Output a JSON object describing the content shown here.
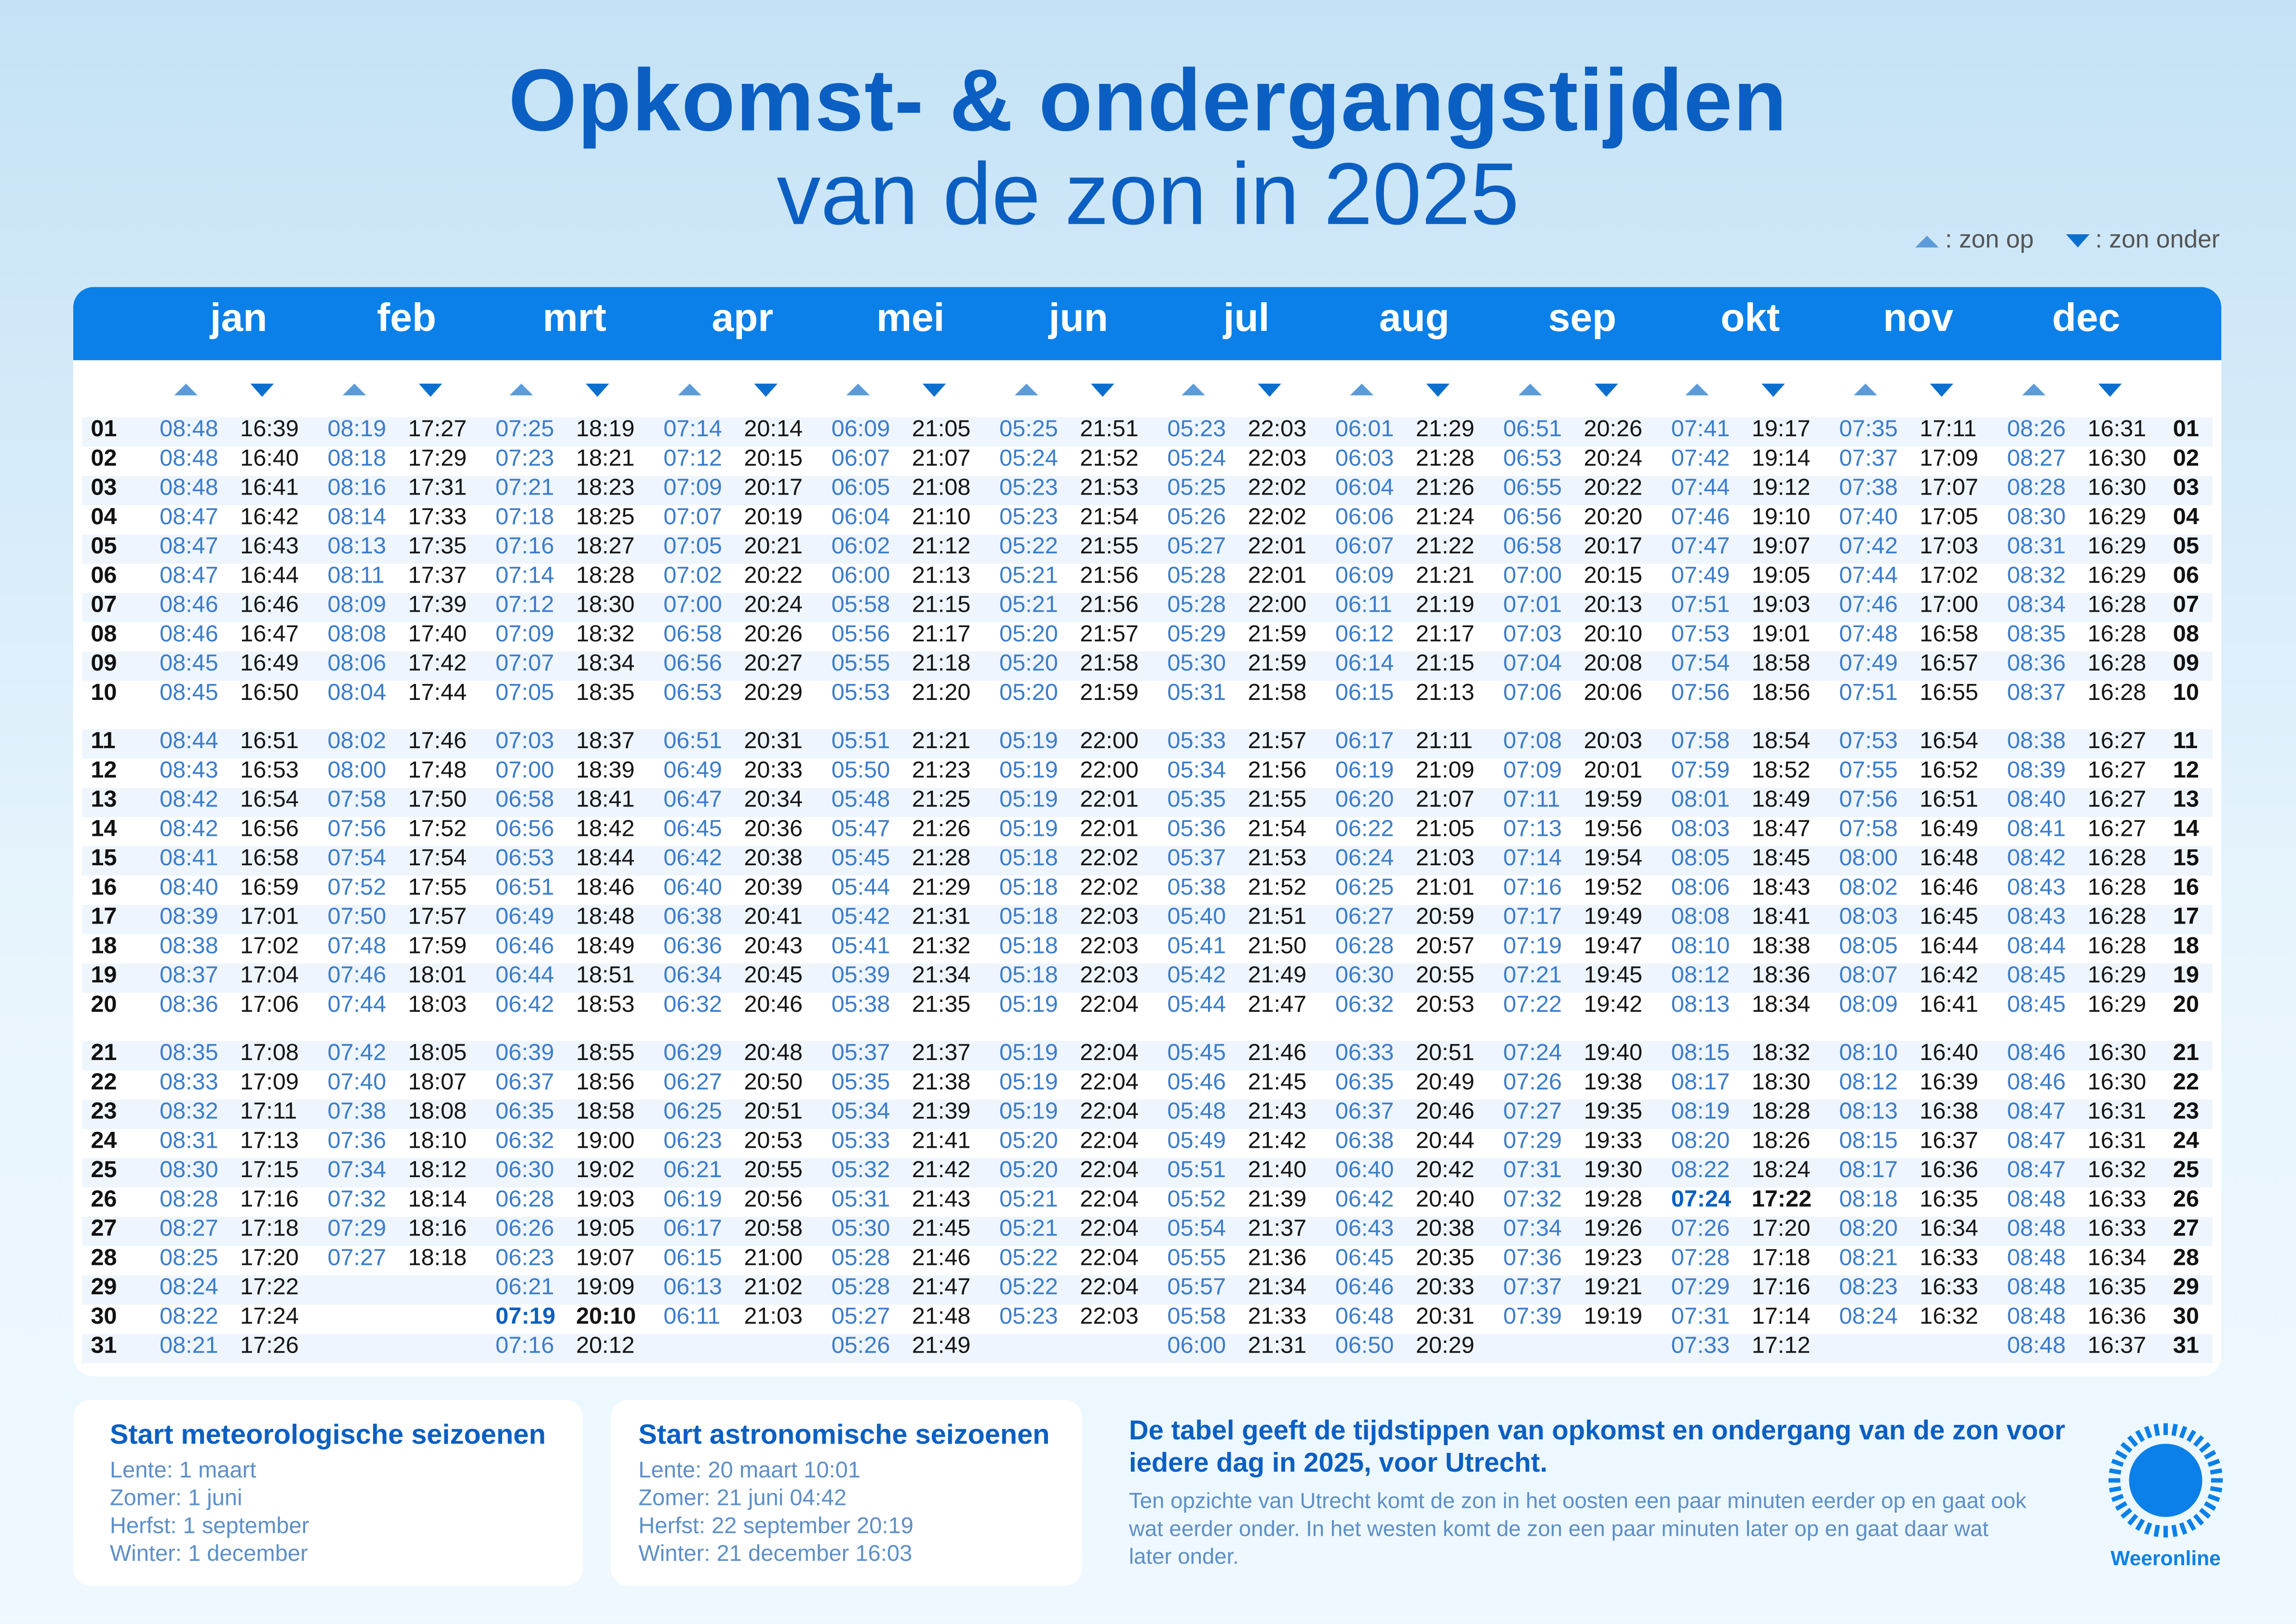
{
  "header": {
    "title": "Opkomst- & ondergangstijden",
    "subtitle": "van de zon in 2025"
  },
  "legend": {
    "rise_label": ": zon op",
    "set_label": ": zon onder"
  },
  "colors": {
    "brand": "#0a80e8",
    "title": "#0b5fc2",
    "rise": "#3a7dcc",
    "set": "#151515"
  },
  "days": [
    "01",
    "02",
    "03",
    "04",
    "05",
    "06",
    "07",
    "08",
    "09",
    "10",
    "11",
    "12",
    "13",
    "14",
    "15",
    "16",
    "17",
    "18",
    "19",
    "20",
    "21",
    "22",
    "23",
    "24",
    "25",
    "26",
    "27",
    "28",
    "29",
    "30",
    "31"
  ],
  "months": [
    {
      "name": "jan",
      "highlight": [],
      "rise": [
        "08:48",
        "08:48",
        "08:48",
        "08:47",
        "08:47",
        "08:47",
        "08:46",
        "08:46",
        "08:45",
        "08:45",
        "08:44",
        "08:43",
        "08:42",
        "08:42",
        "08:41",
        "08:40",
        "08:39",
        "08:38",
        "08:37",
        "08:36",
        "08:35",
        "08:33",
        "08:32",
        "08:31",
        "08:30",
        "08:28",
        "08:27",
        "08:25",
        "08:24",
        "08:22",
        "08:21"
      ],
      "set": [
        "16:39",
        "16:40",
        "16:41",
        "16:42",
        "16:43",
        "16:44",
        "16:46",
        "16:47",
        "16:49",
        "16:50",
        "16:51",
        "16:53",
        "16:54",
        "16:56",
        "16:58",
        "16:59",
        "17:01",
        "17:02",
        "17:04",
        "17:06",
        "17:08",
        "17:09",
        "17:11",
        "17:13",
        "17:15",
        "17:16",
        "17:18",
        "17:20",
        "17:22",
        "17:24",
        "17:26"
      ]
    },
    {
      "name": "feb",
      "highlight": [],
      "rise": [
        "08:19",
        "08:18",
        "08:16",
        "08:14",
        "08:13",
        "08:11",
        "08:09",
        "08:08",
        "08:06",
        "08:04",
        "08:02",
        "08:00",
        "07:58",
        "07:56",
        "07:54",
        "07:52",
        "07:50",
        "07:48",
        "07:46",
        "07:44",
        "07:42",
        "07:40",
        "07:38",
        "07:36",
        "07:34",
        "07:32",
        "07:29",
        "07:27"
      ],
      "set": [
        "17:27",
        "17:29",
        "17:31",
        "17:33",
        "17:35",
        "17:37",
        "17:39",
        "17:40",
        "17:42",
        "17:44",
        "17:46",
        "17:48",
        "17:50",
        "17:52",
        "17:54",
        "17:55",
        "17:57",
        "17:59",
        "18:01",
        "18:03",
        "18:05",
        "18:07",
        "18:08",
        "18:10",
        "18:12",
        "18:14",
        "18:16",
        "18:18"
      ]
    },
    {
      "name": "mrt",
      "highlight": [
        30
      ],
      "rise": [
        "07:25",
        "07:23",
        "07:21",
        "07:18",
        "07:16",
        "07:14",
        "07:12",
        "07:09",
        "07:07",
        "07:05",
        "07:03",
        "07:00",
        "06:58",
        "06:56",
        "06:53",
        "06:51",
        "06:49",
        "06:46",
        "06:44",
        "06:42",
        "06:39",
        "06:37",
        "06:35",
        "06:32",
        "06:30",
        "06:28",
        "06:26",
        "06:23",
        "06:21",
        "07:19",
        "07:16"
      ],
      "set": [
        "18:19",
        "18:21",
        "18:23",
        "18:25",
        "18:27",
        "18:28",
        "18:30",
        "18:32",
        "18:34",
        "18:35",
        "18:37",
        "18:39",
        "18:41",
        "18:42",
        "18:44",
        "18:46",
        "18:48",
        "18:49",
        "18:51",
        "18:53",
        "18:55",
        "18:56",
        "18:58",
        "19:00",
        "19:02",
        "19:03",
        "19:05",
        "19:07",
        "19:09",
        "20:10",
        "20:12"
      ]
    },
    {
      "name": "apr",
      "highlight": [],
      "rise": [
        "07:14",
        "07:12",
        "07:09",
        "07:07",
        "07:05",
        "07:02",
        "07:00",
        "06:58",
        "06:56",
        "06:53",
        "06:51",
        "06:49",
        "06:47",
        "06:45",
        "06:42",
        "06:40",
        "06:38",
        "06:36",
        "06:34",
        "06:32",
        "06:29",
        "06:27",
        "06:25",
        "06:23",
        "06:21",
        "06:19",
        "06:17",
        "06:15",
        "06:13",
        "06:11"
      ],
      "set": [
        "20:14",
        "20:15",
        "20:17",
        "20:19",
        "20:21",
        "20:22",
        "20:24",
        "20:26",
        "20:27",
        "20:29",
        "20:31",
        "20:33",
        "20:34",
        "20:36",
        "20:38",
        "20:39",
        "20:41",
        "20:43",
        "20:45",
        "20:46",
        "20:48",
        "20:50",
        "20:51",
        "20:53",
        "20:55",
        "20:56",
        "20:58",
        "21:00",
        "21:02",
        "21:03"
      ]
    },
    {
      "name": "mei",
      "highlight": [],
      "rise": [
        "06:09",
        "06:07",
        "06:05",
        "06:04",
        "06:02",
        "06:00",
        "05:58",
        "05:56",
        "05:55",
        "05:53",
        "05:51",
        "05:50",
        "05:48",
        "05:47",
        "05:45",
        "05:44",
        "05:42",
        "05:41",
        "05:39",
        "05:38",
        "05:37",
        "05:35",
        "05:34",
        "05:33",
        "05:32",
        "05:31",
        "05:30",
        "05:28",
        "05:28",
        "05:27",
        "05:26"
      ],
      "set": [
        "21:05",
        "21:07",
        "21:08",
        "21:10",
        "21:12",
        "21:13",
        "21:15",
        "21:17",
        "21:18",
        "21:20",
        "21:21",
        "21:23",
        "21:25",
        "21:26",
        "21:28",
        "21:29",
        "21:31",
        "21:32",
        "21:34",
        "21:35",
        "21:37",
        "21:38",
        "21:39",
        "21:41",
        "21:42",
        "21:43",
        "21:45",
        "21:46",
        "21:47",
        "21:48",
        "21:49"
      ]
    },
    {
      "name": "jun",
      "highlight": [],
      "rise": [
        "05:25",
        "05:24",
        "05:23",
        "05:23",
        "05:22",
        "05:21",
        "05:21",
        "05:20",
        "05:20",
        "05:20",
        "05:19",
        "05:19",
        "05:19",
        "05:19",
        "05:18",
        "05:18",
        "05:18",
        "05:18",
        "05:18",
        "05:19",
        "05:19",
        "05:19",
        "05:19",
        "05:20",
        "05:20",
        "05:21",
        "05:21",
        "05:22",
        "05:22",
        "05:23"
      ],
      "set": [
        "21:51",
        "21:52",
        "21:53",
        "21:54",
        "21:55",
        "21:56",
        "21:56",
        "21:57",
        "21:58",
        "21:59",
        "22:00",
        "22:00",
        "22:01",
        "22:01",
        "22:02",
        "22:02",
        "22:03",
        "22:03",
        "22:03",
        "22:04",
        "22:04",
        "22:04",
        "22:04",
        "22:04",
        "22:04",
        "22:04",
        "22:04",
        "22:04",
        "22:04",
        "22:03"
      ]
    },
    {
      "name": "jul",
      "highlight": [],
      "rise": [
        "05:23",
        "05:24",
        "05:25",
        "05:26",
        "05:27",
        "05:28",
        "05:28",
        "05:29",
        "05:30",
        "05:31",
        "05:33",
        "05:34",
        "05:35",
        "05:36",
        "05:37",
        "05:38",
        "05:40",
        "05:41",
        "05:42",
        "05:44",
        "05:45",
        "05:46",
        "05:48",
        "05:49",
        "05:51",
        "05:52",
        "05:54",
        "05:55",
        "05:57",
        "05:58",
        "06:00"
      ],
      "set": [
        "22:03",
        "22:03",
        "22:02",
        "22:02",
        "22:01",
        "22:01",
        "22:00",
        "21:59",
        "21:59",
        "21:58",
        "21:57",
        "21:56",
        "21:55",
        "21:54",
        "21:53",
        "21:52",
        "21:51",
        "21:50",
        "21:49",
        "21:47",
        "21:46",
        "21:45",
        "21:43",
        "21:42",
        "21:40",
        "21:39",
        "21:37",
        "21:36",
        "21:34",
        "21:33",
        "21:31"
      ]
    },
    {
      "name": "aug",
      "highlight": [],
      "rise": [
        "06:01",
        "06:03",
        "06:04",
        "06:06",
        "06:07",
        "06:09",
        "06:11",
        "06:12",
        "06:14",
        "06:15",
        "06:17",
        "06:19",
        "06:20",
        "06:22",
        "06:24",
        "06:25",
        "06:27",
        "06:28",
        "06:30",
        "06:32",
        "06:33",
        "06:35",
        "06:37",
        "06:38",
        "06:40",
        "06:42",
        "06:43",
        "06:45",
        "06:46",
        "06:48",
        "06:50"
      ],
      "set": [
        "21:29",
        "21:28",
        "21:26",
        "21:24",
        "21:22",
        "21:21",
        "21:19",
        "21:17",
        "21:15",
        "21:13",
        "21:11",
        "21:09",
        "21:07",
        "21:05",
        "21:03",
        "21:01",
        "20:59",
        "20:57",
        "20:55",
        "20:53",
        "20:51",
        "20:49",
        "20:46",
        "20:44",
        "20:42",
        "20:40",
        "20:38",
        "20:35",
        "20:33",
        "20:31",
        "20:29"
      ]
    },
    {
      "name": "sep",
      "highlight": [],
      "rise": [
        "06:51",
        "06:53",
        "06:55",
        "06:56",
        "06:58",
        "07:00",
        "07:01",
        "07:03",
        "07:04",
        "07:06",
        "07:08",
        "07:09",
        "07:11",
        "07:13",
        "07:14",
        "07:16",
        "07:17",
        "07:19",
        "07:21",
        "07:22",
        "07:24",
        "07:26",
        "07:27",
        "07:29",
        "07:31",
        "07:32",
        "07:34",
        "07:36",
        "07:37",
        "07:39"
      ],
      "set": [
        "20:26",
        "20:24",
        "20:22",
        "20:20",
        "20:17",
        "20:15",
        "20:13",
        "20:10",
        "20:08",
        "20:06",
        "20:03",
        "20:01",
        "19:59",
        "19:56",
        "19:54",
        "19:52",
        "19:49",
        "19:47",
        "19:45",
        "19:42",
        "19:40",
        "19:38",
        "19:35",
        "19:33",
        "19:30",
        "19:28",
        "19:26",
        "19:23",
        "19:21",
        "19:19"
      ]
    },
    {
      "name": "okt",
      "highlight": [
        26
      ],
      "rise": [
        "07:41",
        "07:42",
        "07:44",
        "07:46",
        "07:47",
        "07:49",
        "07:51",
        "07:53",
        "07:54",
        "07:56",
        "07:58",
        "07:59",
        "08:01",
        "08:03",
        "08:05",
        "08:06",
        "08:08",
        "08:10",
        "08:12",
        "08:13",
        "08:15",
        "08:17",
        "08:19",
        "08:20",
        "08:22",
        "07:24",
        "07:26",
        "07:28",
        "07:29",
        "07:31",
        "07:33"
      ],
      "set": [
        "19:17",
        "19:14",
        "19:12",
        "19:10",
        "19:07",
        "19:05",
        "19:03",
        "19:01",
        "18:58",
        "18:56",
        "18:54",
        "18:52",
        "18:49",
        "18:47",
        "18:45",
        "18:43",
        "18:41",
        "18:38",
        "18:36",
        "18:34",
        "18:32",
        "18:30",
        "18:28",
        "18:26",
        "18:24",
        "17:22",
        "17:20",
        "17:18",
        "17:16",
        "17:14",
        "17:12"
      ]
    },
    {
      "name": "nov",
      "highlight": [],
      "rise": [
        "07:35",
        "07:37",
        "07:38",
        "07:40",
        "07:42",
        "07:44",
        "07:46",
        "07:48",
        "07:49",
        "07:51",
        "07:53",
        "07:55",
        "07:56",
        "07:58",
        "08:00",
        "08:02",
        "08:03",
        "08:05",
        "08:07",
        "08:09",
        "08:10",
        "08:12",
        "08:13",
        "08:15",
        "08:17",
        "08:18",
        "08:20",
        "08:21",
        "08:23",
        "08:24"
      ],
      "set": [
        "17:11",
        "17:09",
        "17:07",
        "17:05",
        "17:03",
        "17:02",
        "17:00",
        "16:58",
        "16:57",
        "16:55",
        "16:54",
        "16:52",
        "16:51",
        "16:49",
        "16:48",
        "16:46",
        "16:45",
        "16:44",
        "16:42",
        "16:41",
        "16:40",
        "16:39",
        "16:38",
        "16:37",
        "16:36",
        "16:35",
        "16:34",
        "16:33",
        "16:33",
        "16:32"
      ]
    },
    {
      "name": "dec",
      "highlight": [],
      "rise": [
        "08:26",
        "08:27",
        "08:28",
        "08:30",
        "08:31",
        "08:32",
        "08:34",
        "08:35",
        "08:36",
        "08:37",
        "08:38",
        "08:39",
        "08:40",
        "08:41",
        "08:42",
        "08:43",
        "08:43",
        "08:44",
        "08:45",
        "08:45",
        "08:46",
        "08:46",
        "08:47",
        "08:47",
        "08:47",
        "08:48",
        "08:48",
        "08:48",
        "08:48",
        "08:48",
        "08:48"
      ],
      "set": [
        "16:31",
        "16:30",
        "16:30",
        "16:29",
        "16:29",
        "16:29",
        "16:28",
        "16:28",
        "16:28",
        "16:28",
        "16:27",
        "16:27",
        "16:27",
        "16:27",
        "16:28",
        "16:28",
        "16:28",
        "16:28",
        "16:29",
        "16:29",
        "16:30",
        "16:30",
        "16:31",
        "16:31",
        "16:32",
        "16:33",
        "16:33",
        "16:34",
        "16:35",
        "16:36",
        "16:37"
      ]
    }
  ],
  "meteo": {
    "title": "Start meteorologische seizoenen",
    "lines": [
      "Lente: 1 maart",
      "Zomer: 1 juni",
      "Herfst: 1 september",
      "Winter: 1 december"
    ]
  },
  "astro": {
    "title": "Start astronomische seizoenen",
    "lines": [
      "Lente: 20 maart 10:01",
      "Zomer: 21 juni 04:42",
      "Herfst: 22 september 20:19",
      "Winter: 21 december 16:03"
    ]
  },
  "info": {
    "heading": "De tabel geeft de tijdstippen van opkomst en ondergang van de zon voor iedere dag in 2025, voor Utrecht.",
    "body": "Ten opzichte van Utrecht komt de zon in het oosten een paar minuten eerder op en gaat ook wat eerder onder. In het westen komt de zon een paar minuten later op en gaat daar wat later onder."
  },
  "logo": {
    "name": "Weeronline",
    "icon": "sun-icon"
  }
}
